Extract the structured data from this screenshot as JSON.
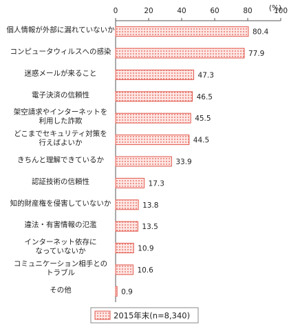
{
  "chart_data": {
    "type": "bar",
    "orientation": "horizontal",
    "xlabel": "(%)",
    "categories": [
      "個人情報が外部に漏れていないか",
      "コンピュータウィルスへの感染",
      "迷惑メールが来ること",
      "電子決済の信頼性",
      "架空請求やインターネットを\n利用した詐欺",
      "どこまでセキュリティ対策を\n行えばよいか",
      "きちんと理解できているか",
      "認証技術の信頼性",
      "知的財産権を侵害していないか",
      "違法・有害情報の氾濫",
      "インターネット依存に\nなっていないか",
      "コミュニケーション相手との\nトラブル",
      "その他"
    ],
    "series": [
      {
        "name": "2015年末(n=8,340)",
        "color": "#e2574c",
        "values": [
          80.4,
          77.9,
          47.3,
          46.5,
          45.5,
          44.5,
          33.9,
          17.3,
          13.8,
          13.5,
          10.9,
          10.6,
          0.9
        ]
      }
    ],
    "xlim": [
      0,
      100
    ],
    "xticks": [
      0,
      20,
      40,
      60,
      80,
      100
    ]
  }
}
